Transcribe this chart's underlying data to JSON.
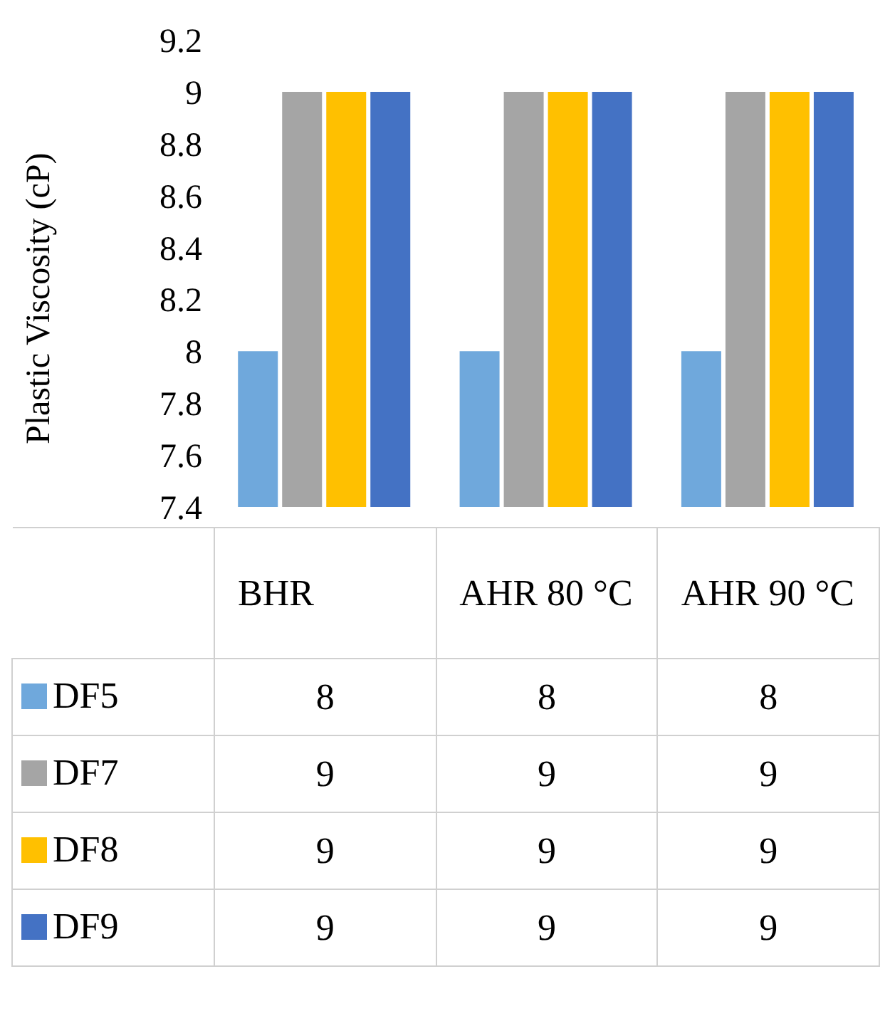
{
  "chart_data": {
    "type": "bar",
    "ylabel": "Plastic Viscosity (cP)",
    "categories": [
      "BHR",
      "AHR 80 °C",
      "AHR 90 °C"
    ],
    "series": [
      {
        "name": "DF5",
        "color": "#6fa8dc",
        "values": [
          8,
          8,
          8
        ]
      },
      {
        "name": "DF7",
        "color": "#a5a5a5",
        "values": [
          9,
          9,
          9
        ]
      },
      {
        "name": "DF8",
        "color": "#ffc000",
        "values": [
          9,
          9,
          9
        ]
      },
      {
        "name": "DF9",
        "color": "#4472c4",
        "values": [
          9,
          9,
          9
        ]
      }
    ],
    "ylim": [
      7.4,
      9.2
    ],
    "yticks": [
      7.4,
      7.6,
      7.8,
      8,
      8.2,
      8.4,
      8.6,
      8.8,
      9,
      9.2
    ],
    "grid": false,
    "legend": "bottom",
    "data_labels": true
  }
}
